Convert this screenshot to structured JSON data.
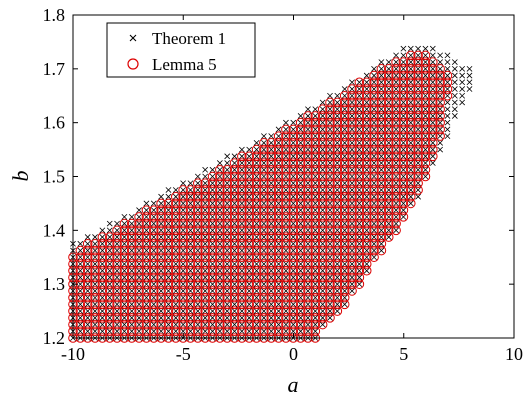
{
  "chart_data": {
    "type": "scatter",
    "xlabel": "a",
    "ylabel": "b",
    "xlim": [
      -10,
      10
    ],
    "ylim": [
      1.2,
      1.8
    ],
    "xticks": [
      "-10",
      "-5",
      "0",
      "5",
      "10"
    ],
    "yticks": [
      "1.2",
      "1.3",
      "1.4",
      "1.5",
      "1.6",
      "1.7",
      "1.8"
    ],
    "grid": false,
    "legend_position": "top-left",
    "grid_step": {
      "a": 0.333,
      "b": 0.0125
    },
    "series": [
      {
        "name": "Theorem 1",
        "marker": "x",
        "color": "#000000",
        "region": {
          "description_boundary_lower": [
            [
              -10,
              1.2
            ],
            [
              1.0,
              1.2
            ],
            [
              2.5,
              1.27
            ],
            [
              4.0,
              1.36
            ],
            [
              5.5,
              1.45
            ],
            [
              6.5,
              1.53
            ],
            [
              7.3,
              1.6
            ],
            [
              8.0,
              1.66
            ]
          ],
          "description_boundary_upper": [
            [
              -10,
              1.375
            ],
            [
              -7,
              1.445
            ],
            [
              -4,
              1.515
            ],
            [
              -1,
              1.585
            ],
            [
              2,
              1.66
            ],
            [
              4,
              1.715
            ],
            [
              5,
              1.74
            ],
            [
              6.5,
              1.74
            ],
            [
              8.0,
              1.7
            ]
          ]
        }
      },
      {
        "name": "Lemma 5",
        "marker": "o",
        "color": "#dd0000",
        "region": {
          "description_boundary_lower": [
            [
              -10,
              1.2
            ],
            [
              1.0,
              1.2
            ],
            [
              2.5,
              1.265
            ],
            [
              4.0,
              1.35
            ],
            [
              5.0,
              1.42
            ],
            [
              6.0,
              1.5
            ],
            [
              6.8,
              1.59
            ],
            [
              7.0,
              1.65
            ]
          ],
          "description_boundary_upper": [
            [
              -10,
              1.36
            ],
            [
              -7,
              1.43
            ],
            [
              -4,
              1.5
            ],
            [
              -1,
              1.575
            ],
            [
              2,
              1.65
            ],
            [
              4,
              1.705
            ],
            [
              5,
              1.725
            ],
            [
              6.0,
              1.725
            ],
            [
              7.0,
              1.69
            ]
          ]
        }
      }
    ]
  }
}
